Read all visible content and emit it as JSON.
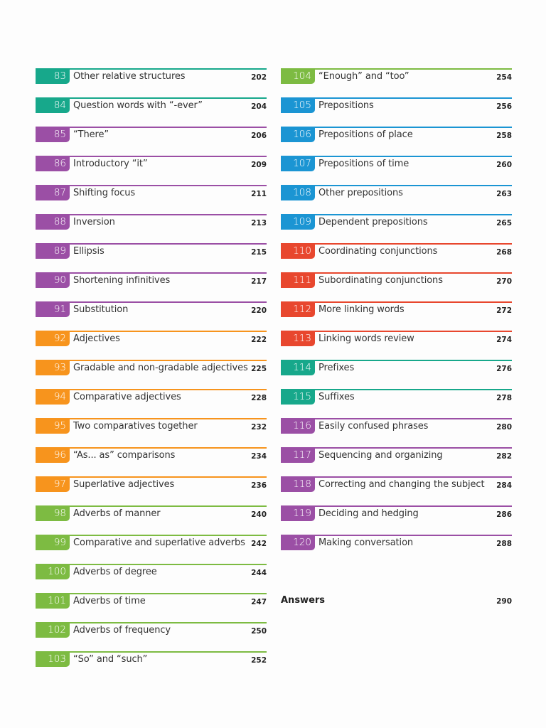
{
  "colors": {
    "teal": "#17a88b",
    "purple": "#9b4fa5",
    "orange": "#f7941d",
    "green": "#7dbb42",
    "blue": "#1b95d3",
    "red": "#e8472e"
  },
  "left_column": [
    {
      "num": "83",
      "title": "Other relative structures",
      "page": "202",
      "color": "teal"
    },
    {
      "num": "84",
      "title": "Question words with “-ever”",
      "page": "204",
      "color": "teal"
    },
    {
      "num": "85",
      "title": "“There”",
      "page": "206",
      "color": "purple"
    },
    {
      "num": "86",
      "title": "Introductory “it”",
      "page": "209",
      "color": "purple"
    },
    {
      "num": "87",
      "title": "Shifting focus",
      "page": "211",
      "color": "purple"
    },
    {
      "num": "88",
      "title": "Inversion",
      "page": "213",
      "color": "purple"
    },
    {
      "num": "89",
      "title": "Ellipsis",
      "page": "215",
      "color": "purple"
    },
    {
      "num": "90",
      "title": "Shortening infinitives",
      "page": "217",
      "color": "purple"
    },
    {
      "num": "91",
      "title": "Substitution",
      "page": "220",
      "color": "purple"
    },
    {
      "num": "92",
      "title": "Adjectives",
      "page": "222",
      "color": "orange"
    },
    {
      "num": "93",
      "title": "Gradable and non-gradable adjectives",
      "page": "225",
      "color": "orange"
    },
    {
      "num": "94",
      "title": "Comparative adjectives",
      "page": "228",
      "color": "orange"
    },
    {
      "num": "95",
      "title": "Two comparatives together",
      "page": "232",
      "color": "orange"
    },
    {
      "num": "96",
      "title": "“As... as” comparisons",
      "page": "234",
      "color": "orange"
    },
    {
      "num": "97",
      "title": "Superlative adjectives",
      "page": "236",
      "color": "orange"
    },
    {
      "num": "98",
      "title": "Adverbs of manner",
      "page": "240",
      "color": "green"
    },
    {
      "num": "99",
      "title": "Comparative and superlative adverbs",
      "page": "242",
      "color": "green"
    },
    {
      "num": "100",
      "title": "Adverbs of degree",
      "page": "244",
      "color": "green"
    },
    {
      "num": "101",
      "title": "Adverbs of time",
      "page": "247",
      "color": "green"
    },
    {
      "num": "102",
      "title": "Adverbs of frequency",
      "page": "250",
      "color": "green"
    },
    {
      "num": "103",
      "title": "“So” and “such”",
      "page": "252",
      "color": "green"
    }
  ],
  "right_column": [
    {
      "num": "104",
      "title": "“Enough” and “too”",
      "page": "254",
      "color": "green"
    },
    {
      "num": "105",
      "title": "Prepositions",
      "page": "256",
      "color": "blue"
    },
    {
      "num": "106",
      "title": "Prepositions of place",
      "page": "258",
      "color": "blue"
    },
    {
      "num": "107",
      "title": "Prepositions of time",
      "page": "260",
      "color": "blue"
    },
    {
      "num": "108",
      "title": "Other prepositions",
      "page": "263",
      "color": "blue"
    },
    {
      "num": "109",
      "title": "Dependent prepositions",
      "page": "265",
      "color": "blue"
    },
    {
      "num": "110",
      "title": "Coordinating conjunctions",
      "page": "268",
      "color": "red"
    },
    {
      "num": "111",
      "title": "Subordinating conjunctions",
      "page": "270",
      "color": "red"
    },
    {
      "num": "112",
      "title": "More linking words",
      "page": "272",
      "color": "red"
    },
    {
      "num": "113",
      "title": "Linking words review",
      "page": "274",
      "color": "red"
    },
    {
      "num": "114",
      "title": "Prefixes",
      "page": "276",
      "color": "teal"
    },
    {
      "num": "115",
      "title": "Suffixes",
      "page": "278",
      "color": "teal"
    },
    {
      "num": "116",
      "title": "Easily confused phrases",
      "page": "280",
      "color": "purple"
    },
    {
      "num": "117",
      "title": "Sequencing and organizing",
      "page": "282",
      "color": "purple"
    },
    {
      "num": "118",
      "title": "Correcting and changing the subject",
      "page": "284",
      "color": "purple"
    },
    {
      "num": "119",
      "title": "Deciding and hedging",
      "page": "286",
      "color": "purple"
    },
    {
      "num": "120",
      "title": "Making conversation",
      "page": "288",
      "color": "purple"
    }
  ],
  "answers": {
    "label": "Answers",
    "page": "290"
  }
}
